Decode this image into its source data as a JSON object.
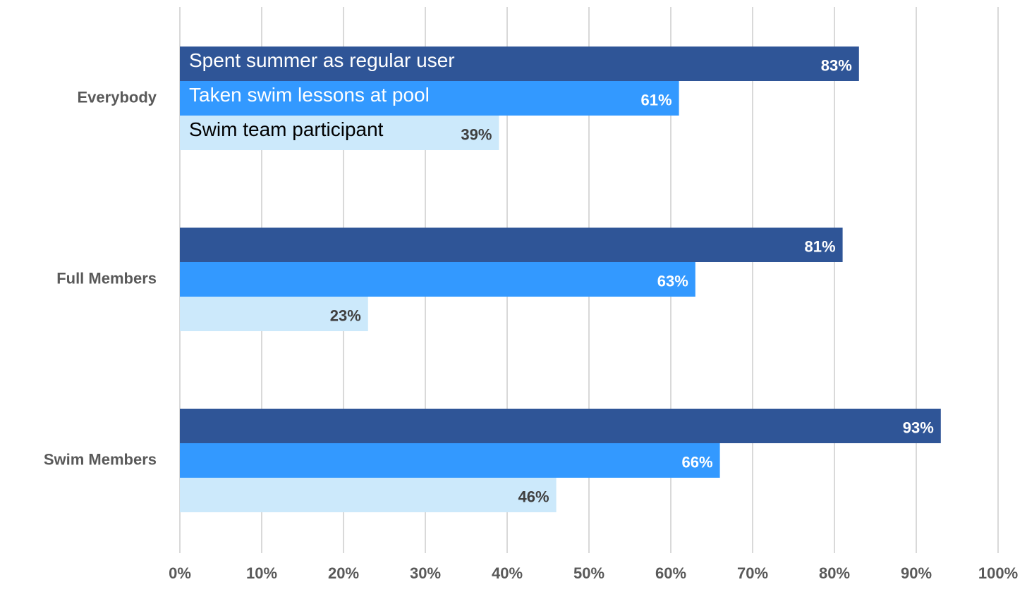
{
  "chart_data": {
    "type": "hbar",
    "categories": [
      "Everybody",
      "Full Members",
      "Swim Members"
    ],
    "series": [
      {
        "name": "Spent summer as regular user",
        "color": "#2f5597",
        "values": [
          83,
          81,
          93
        ],
        "value_labels": [
          "83%",
          "81%",
          "93%"
        ]
      },
      {
        "name": "Taken swim lessons at pool",
        "color": "#3399ff",
        "values": [
          61,
          63,
          66
        ],
        "value_labels": [
          "61%",
          "63%",
          "66%"
        ]
      },
      {
        "name": "Swim team participant",
        "color": "#cce9fb",
        "values": [
          39,
          23,
          46
        ],
        "value_labels": [
          "39%",
          "23%",
          "46%"
        ]
      }
    ],
    "xlim": [
      0,
      100
    ],
    "xticks": [
      {
        "value": 0,
        "label": "0%"
      },
      {
        "value": 10,
        "label": "10%"
      },
      {
        "value": 20,
        "label": "20%"
      },
      {
        "value": 30,
        "label": "30%"
      },
      {
        "value": 40,
        "label": "40%"
      },
      {
        "value": 50,
        "label": "50%"
      },
      {
        "value": 60,
        "label": "60%"
      },
      {
        "value": 70,
        "label": "70%"
      },
      {
        "value": 80,
        "label": "80%"
      },
      {
        "value": 90,
        "label": "90%"
      },
      {
        "value": 100,
        "label": "100%"
      }
    ],
    "grid": true
  }
}
